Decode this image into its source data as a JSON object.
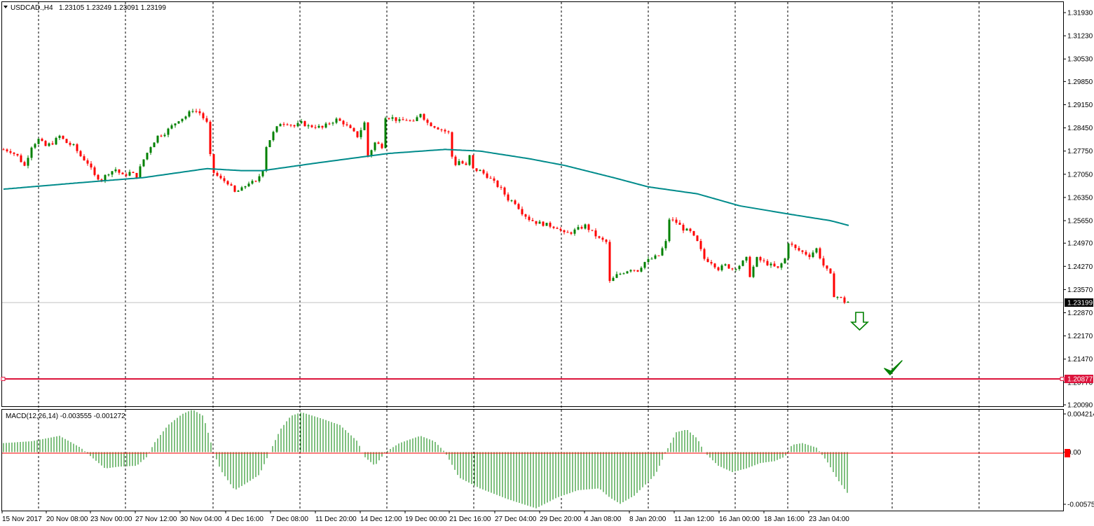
{
  "header": {
    "symbol_label": "USDCAD.,H4",
    "ohlc_label": "1.23105 1.23249 1.23091 1.23199"
  },
  "macd_panel": {
    "label": "MACD(12,26,14) -0.003555 -0.001272"
  },
  "colors": {
    "bull_candle": "#008000",
    "bear_candle": "#ff0000",
    "moving_average": "#008b8b",
    "target_line": "#dc143c",
    "macd_histogram": "#008000",
    "macd_zero_line": "#ff0000",
    "grid": "#000000",
    "price_marker_bg": "#000000",
    "target_marker_bg": "#dc143c",
    "arrow": "#008000"
  },
  "chart_data": [
    {
      "type": "candlestick",
      "instrument": "USDCAD.",
      "timeframe": "H4",
      "y_axis_ticks": [
        "1.31930",
        "1.31230",
        "1.30530",
        "1.29850",
        "1.29150",
        "1.28450",
        "1.27750",
        "1.27050",
        "1.26350",
        "1.25650",
        "1.24970",
        "1.24270",
        "1.23570",
        "1.22870",
        "1.22170",
        "1.21470",
        "1.20770",
        "1.20090"
      ],
      "ylim": [
        1.2009,
        1.3193
      ],
      "x_axis_labels": [
        "15 Nov 2017",
        "20 Nov 08:00",
        "23 Nov 00:00",
        "27 Nov 12:00",
        "30 Nov 04:00",
        "4 Dec 16:00",
        "7 Dec 08:00",
        "11 Dec 20:00",
        "14 Dec 12:00",
        "19 Dec 00:00",
        "21 Dec 16:00",
        "27 Dec 04:00",
        "29 Dec 20:00",
        "4 Jan 08:00",
        "8 Jan 20:00",
        "11 Jan 12:00",
        "16 Jan 00:00",
        "18 Jan 16:00",
        "23 Jan 04:00"
      ],
      "current_price": "1.23199",
      "target_price": "1.20877",
      "close_path": [
        [
          0,
          1.278
        ],
        [
          10,
          1.2775
        ],
        [
          20,
          1.276
        ],
        [
          30,
          1.273
        ],
        [
          40,
          1.279
        ],
        [
          50,
          1.281
        ],
        [
          60,
          1.279
        ],
        [
          70,
          1.28
        ],
        [
          80,
          1.282
        ],
        [
          90,
          1.28
        ],
        [
          100,
          1.279
        ],
        [
          110,
          1.276
        ],
        [
          120,
          1.274
        ],
        [
          130,
          1.27
        ],
        [
          140,
          1.269
        ],
        [
          150,
          1.271
        ],
        [
          160,
          1.272
        ],
        [
          170,
          1.27
        ],
        [
          180,
          1.271
        ],
        [
          190,
          1.27
        ],
        [
          200,
          1.275
        ],
        [
          210,
          1.279
        ],
        [
          220,
          1.282
        ],
        [
          230,
          1.283
        ],
        [
          240,
          1.285
        ],
        [
          250,
          1.287
        ],
        [
          260,
          1.288
        ],
        [
          270,
          1.29
        ],
        [
          280,
          1.289
        ],
        [
          290,
          1.286
        ],
        [
          295,
          1.276
        ],
        [
          300,
          1.271
        ],
        [
          310,
          1.269
        ],
        [
          320,
          1.268
        ],
        [
          330,
          1.265
        ],
        [
          340,
          1.266
        ],
        [
          350,
          1.268
        ],
        [
          360,
          1.268
        ],
        [
          370,
          1.272
        ],
        [
          375,
          1.279
        ],
        [
          385,
          1.283
        ],
        [
          395,
          1.286
        ],
        [
          405,
          1.286
        ],
        [
          415,
          1.285
        ],
        [
          425,
          1.286
        ],
        [
          435,
          1.285
        ],
        [
          445,
          1.285
        ],
        [
          455,
          1.2845
        ],
        [
          465,
          1.286
        ],
        [
          475,
          1.287
        ],
        [
          485,
          1.286
        ],
        [
          495,
          1.284
        ],
        [
          505,
          1.282
        ],
        [
          515,
          1.286
        ],
        [
          520,
          1.276
        ],
        [
          530,
          1.28
        ],
        [
          540,
          1.279
        ],
        [
          545,
          1.288
        ],
        [
          555,
          1.2875
        ],
        [
          565,
          1.2865
        ],
        [
          575,
          1.287
        ],
        [
          585,
          1.286
        ],
        [
          595,
          1.289
        ],
        [
          605,
          1.286
        ],
        [
          615,
          1.285
        ],
        [
          625,
          1.284
        ],
        [
          635,
          1.283
        ],
        [
          642,
          1.273
        ],
        [
          650,
          1.2745
        ],
        [
          660,
          1.273
        ],
        [
          665,
          1.276
        ],
        [
          670,
          1.272
        ],
        [
          680,
          1.2715
        ],
        [
          690,
          1.27
        ],
        [
          700,
          1.268
        ],
        [
          710,
          1.266
        ],
        [
          720,
          1.263
        ],
        [
          730,
          1.262
        ],
        [
          740,
          1.259
        ],
        [
          750,
          1.257
        ],
        [
          760,
          1.256
        ],
        [
          770,
          1.2555
        ],
        [
          780,
          1.255
        ],
        [
          790,
          1.2545
        ],
        [
          800,
          1.2525
        ],
        [
          810,
          1.253
        ],
        [
          820,
          1.254
        ],
        [
          830,
          1.255
        ],
        [
          840,
          1.253
        ],
        [
          850,
          1.251
        ],
        [
          860,
          1.25
        ],
        [
          865,
          1.238
        ],
        [
          875,
          1.24
        ],
        [
          885,
          1.241
        ],
        [
          895,
          1.242
        ],
        [
          905,
          1.2415
        ],
        [
          915,
          1.244
        ],
        [
          925,
          1.245
        ],
        [
          935,
          1.246
        ],
        [
          945,
          1.25
        ],
        [
          950,
          1.257
        ],
        [
          960,
          1.256
        ],
        [
          970,
          1.254
        ],
        [
          980,
          1.253
        ],
        [
          990,
          1.25
        ],
        [
          1000,
          1.245
        ],
        [
          1010,
          1.244
        ],
        [
          1020,
          1.242
        ],
        [
          1030,
          1.243
        ],
        [
          1040,
          1.242
        ],
        [
          1050,
          1.243
        ],
        [
          1060,
          1.245
        ],
        [
          1065,
          1.24
        ],
        [
          1075,
          1.245
        ],
        [
          1085,
          1.244
        ],
        [
          1095,
          1.243
        ],
        [
          1105,
          1.242
        ],
        [
          1115,
          1.245
        ],
        [
          1120,
          1.25
        ],
        [
          1130,
          1.248
        ],
        [
          1140,
          1.247
        ],
        [
          1150,
          1.246
        ],
        [
          1160,
          1.248
        ],
        [
          1170,
          1.243
        ],
        [
          1180,
          1.24
        ],
        [
          1185,
          1.234
        ],
        [
          1195,
          1.233
        ],
        [
          1200,
          1.232
        ],
        [
          1207,
          1.232
        ]
      ],
      "moving_average_path": [
        [
          0,
          1.266
        ],
        [
          100,
          1.2678
        ],
        [
          200,
          1.2695
        ],
        [
          290,
          1.2722
        ],
        [
          340,
          1.2716
        ],
        [
          370,
          1.2716
        ],
        [
          450,
          1.274
        ],
        [
          550,
          1.2768
        ],
        [
          630,
          1.278
        ],
        [
          680,
          1.2775
        ],
        [
          750,
          1.2752
        ],
        [
          800,
          1.2732
        ],
        [
          870,
          1.2695
        ],
        [
          920,
          1.2667
        ],
        [
          990,
          1.2646
        ],
        [
          1050,
          1.261
        ],
        [
          1120,
          1.2585
        ],
        [
          1180,
          1.2565
        ],
        [
          1207,
          1.255
        ]
      ]
    },
    {
      "type": "bar",
      "indicator": "MACD(12,26,14)",
      "main_value": "-0.003555",
      "signal_value": "-0.001272",
      "y_axis_ticks": [
        "0.004214",
        "0.00",
        "-0.005751"
      ],
      "ylim": [
        -0.005751,
        0.004214
      ],
      "histogram_path": [
        [
          0,
          0.001
        ],
        [
          40,
          0.0012
        ],
        [
          80,
          0.0018
        ],
        [
          110,
          0.0005
        ],
        [
          125,
          -0.0005
        ],
        [
          145,
          -0.0018
        ],
        [
          165,
          -0.0016
        ],
        [
          190,
          -0.0015
        ],
        [
          205,
          -0.0005
        ],
        [
          215,
          0.001
        ],
        [
          235,
          0.003
        ],
        [
          255,
          0.0042
        ],
        [
          270,
          0.0047
        ],
        [
          285,
          0.004
        ],
        [
          300,
          0.0
        ],
        [
          310,
          -0.002
        ],
        [
          330,
          -0.0042
        ],
        [
          345,
          -0.0035
        ],
        [
          365,
          -0.0025
        ],
        [
          380,
          0.0
        ],
        [
          395,
          0.0025
        ],
        [
          410,
          0.004
        ],
        [
          425,
          0.0044
        ],
        [
          450,
          0.0038
        ],
        [
          480,
          0.003
        ],
        [
          505,
          0.0012
        ],
        [
          515,
          -0.0005
        ],
        [
          530,
          -0.0015
        ],
        [
          545,
          0.0
        ],
        [
          565,
          0.001
        ],
        [
          595,
          0.0018
        ],
        [
          615,
          0.0012
        ],
        [
          630,
          0.0
        ],
        [
          650,
          -0.0028
        ],
        [
          680,
          -0.004
        ],
        [
          720,
          -0.0052
        ],
        [
          760,
          -0.0062
        ],
        [
          790,
          -0.005
        ],
        [
          820,
          -0.0042
        ],
        [
          850,
          -0.004
        ],
        [
          865,
          -0.005
        ],
        [
          880,
          -0.0057
        ],
        [
          900,
          -0.0048
        ],
        [
          930,
          -0.0025
        ],
        [
          945,
          0.0
        ],
        [
          960,
          0.0022
        ],
        [
          975,
          0.0025
        ],
        [
          990,
          0.0015
        ],
        [
          1000,
          0.0
        ],
        [
          1020,
          -0.0015
        ],
        [
          1040,
          -0.0022
        ],
        [
          1060,
          -0.0018
        ],
        [
          1080,
          -0.0012
        ],
        [
          1100,
          -0.001
        ],
        [
          1115,
          -0.0005
        ],
        [
          1125,
          0.0008
        ],
        [
          1140,
          0.001
        ],
        [
          1160,
          0.0005
        ],
        [
          1175,
          -0.001
        ],
        [
          1190,
          -0.003
        ],
        [
          1207,
          -0.0048
        ]
      ]
    }
  ]
}
